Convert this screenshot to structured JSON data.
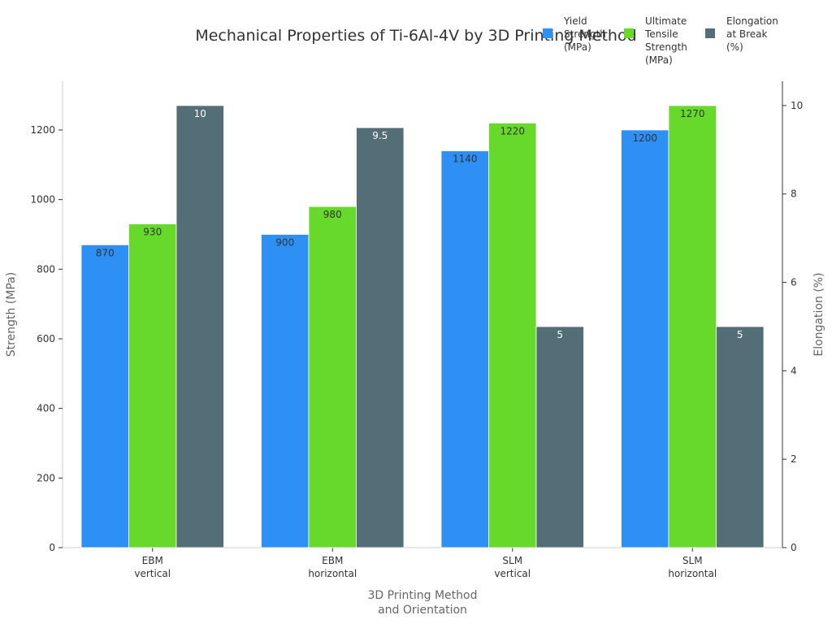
{
  "chart_data": {
    "type": "bar",
    "title": "Mechanical Properties of Ti-6Al-4V by 3D Printing Method",
    "categories": [
      [
        "EBM",
        "vertical"
      ],
      [
        "EBM",
        "horizontal"
      ],
      [
        "SLM",
        "vertical"
      ],
      [
        "SLM",
        "horizontal"
      ]
    ],
    "xlabel": [
      "3D Printing Method",
      "and Orientation"
    ],
    "ylabel": "Strength (MPa)",
    "y2label": "Elongation (%)",
    "ylim": [
      0,
      1340
    ],
    "y2lim": [
      0,
      10.55
    ],
    "yticks": [
      0,
      200,
      400,
      600,
      800,
      1000,
      1200
    ],
    "y2ticks": [
      0,
      2,
      4,
      6,
      8,
      10
    ],
    "legend_position": "top-right",
    "grid": false,
    "series": [
      {
        "name": "Yield Strength (MPa)",
        "legend_lines": [
          "Yield",
          "Strength",
          "(MPa)"
        ],
        "axis": "left",
        "color": "#2E8FF5",
        "label_color": "#333333",
        "values": [
          870,
          900,
          1140,
          1200
        ],
        "labels": [
          "870",
          "900",
          "1140",
          "1200"
        ]
      },
      {
        "name": "Ultimate Tensile Strength (MPa)",
        "legend_lines": [
          "Ultimate",
          "Tensile",
          "Strength",
          "(MPa)"
        ],
        "axis": "left",
        "color": "#66D92A",
        "label_color": "#333333",
        "values": [
          930,
          980,
          1220,
          1270
        ],
        "labels": [
          "930",
          "980",
          "1220",
          "1270"
        ]
      },
      {
        "name": "Elongation at Break (%)",
        "legend_lines": [
          "Elongation",
          "at Break",
          "(%)"
        ],
        "axis": "right",
        "color": "#546E78",
        "label_color": "#ffffff",
        "values": [
          10,
          9.5,
          5,
          5
        ],
        "labels": [
          "10",
          "9.5",
          "5",
          "5"
        ]
      }
    ]
  }
}
